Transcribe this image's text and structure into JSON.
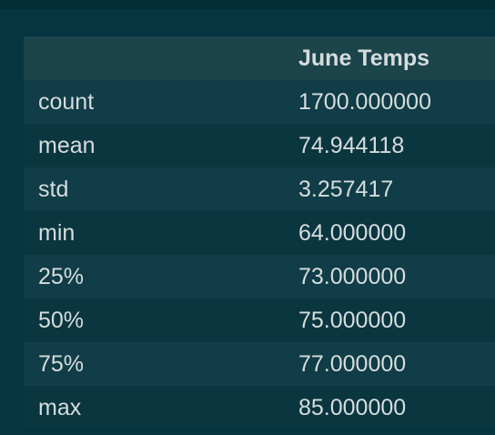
{
  "table": {
    "columns": [
      "",
      "June Temps"
    ],
    "rows": [
      {
        "label": "count",
        "value": "1700.000000"
      },
      {
        "label": "mean",
        "value": "74.944118"
      },
      {
        "label": "std",
        "value": "3.257417"
      },
      {
        "label": "min",
        "value": "64.000000"
      },
      {
        "label": "25%",
        "value": "73.000000"
      },
      {
        "label": "50%",
        "value": "75.000000"
      },
      {
        "label": "75%",
        "value": "77.000000"
      },
      {
        "label": "max",
        "value": "85.000000"
      }
    ]
  }
}
